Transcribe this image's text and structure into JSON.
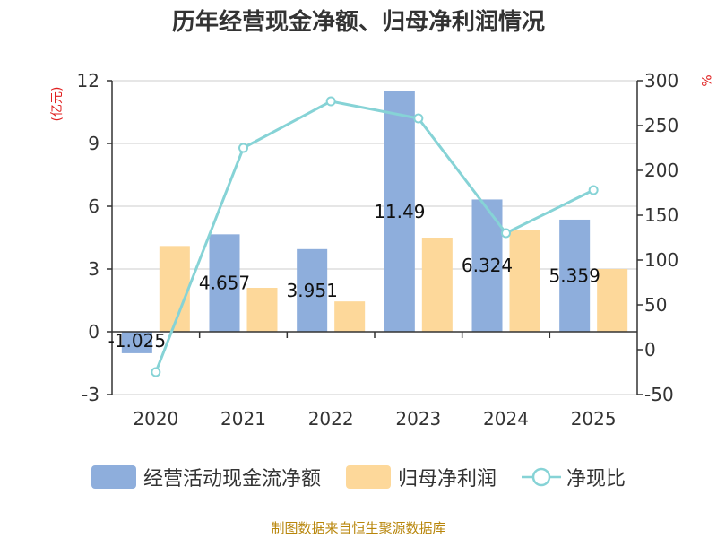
{
  "title": "历年经营现金净额、归母净利润情况",
  "source": "制图数据来自恒生聚源数据库",
  "colors": {
    "cashflow": "#8eaedc",
    "profit": "#fdd89a",
    "ratio": "#86d3d6",
    "unit": "#e02020",
    "axis": "#333333",
    "grid": "#cccccc"
  },
  "chart_data": {
    "type": "bar",
    "categories": [
      "2020",
      "2021",
      "2022",
      "2023",
      "2024",
      "2025"
    ],
    "left_axis": {
      "unit": "(亿元)",
      "ticks": [
        -3,
        0,
        3,
        6,
        9,
        12
      ],
      "ylim": [
        -3,
        12
      ]
    },
    "right_axis": {
      "unit": "%",
      "ticks": [
        -50,
        0,
        50,
        100,
        150,
        200,
        250,
        300
      ],
      "ylim": [
        -50,
        300
      ]
    },
    "grid": true,
    "legend_position": "bottom",
    "series": [
      {
        "name": "经营活动现金流净额",
        "type": "bar",
        "axis": "left",
        "values": [
          -1.025,
          4.657,
          3.951,
          11.49,
          6.324,
          5.359
        ],
        "labels": [
          "-1.025",
          "4.657",
          "3.951",
          "11.49",
          "6.324",
          "5.359"
        ]
      },
      {
        "name": "归母净利润",
        "type": "bar",
        "axis": "left",
        "values": [
          4.1,
          2.1,
          1.45,
          4.5,
          4.85,
          3.0
        ]
      },
      {
        "name": "净现比",
        "type": "line",
        "axis": "right",
        "values": [
          -25,
          225,
          277,
          258,
          130,
          178
        ]
      }
    ]
  }
}
